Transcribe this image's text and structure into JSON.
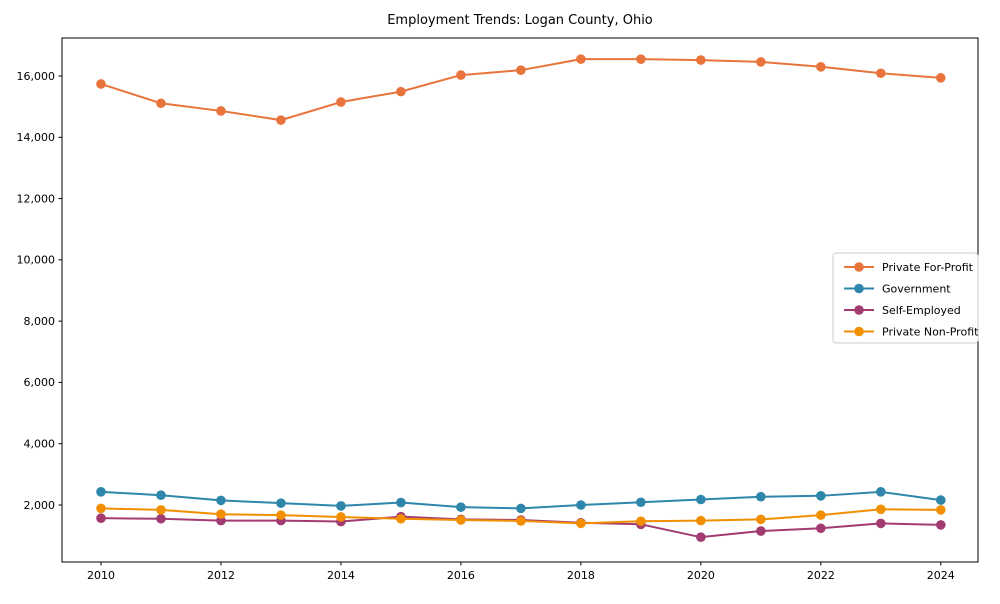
{
  "chart_data": {
    "type": "line",
    "title": "Employment Trends: Logan County, Ohio",
    "xlabel": "",
    "ylabel": "",
    "x": [
      2010,
      2011,
      2012,
      2013,
      2014,
      2015,
      2016,
      2017,
      2018,
      2019,
      2020,
      2021,
      2022,
      2023,
      2024
    ],
    "series": [
      {
        "name": "Private For-Profit",
        "color": "#E8743B",
        "values": [
          15740,
          15110,
          14860,
          14560,
          15150,
          15490,
          16030,
          16190,
          16550,
          16550,
          16520,
          16460,
          16300,
          16090,
          15940
        ]
      },
      {
        "name": "Government",
        "color": "#2E86AB",
        "values": [
          2430,
          2320,
          2150,
          2060,
          1970,
          2080,
          1930,
          1890,
          2000,
          2090,
          2180,
          2270,
          2300,
          2430,
          2160
        ]
      },
      {
        "name": "Self-Employed",
        "color": "#A23B72",
        "values": [
          1570,
          1550,
          1490,
          1490,
          1460,
          1620,
          1530,
          1510,
          1420,
          1370,
          950,
          1150,
          1240,
          1400,
          1350
        ]
      },
      {
        "name": "Private Non-Profit",
        "color": "#F18F01",
        "values": [
          1890,
          1840,
          1700,
          1670,
          1610,
          1550,
          1510,
          1480,
          1400,
          1470,
          1490,
          1530,
          1670,
          1860,
          1840
        ]
      }
    ],
    "xlim": [
      2009.35,
      2024.62
    ],
    "ylim": [
      140,
      17240
    ],
    "xticks": [
      2010,
      2012,
      2014,
      2016,
      2018,
      2020,
      2022,
      2024
    ],
    "xtick_labels": [
      "2010",
      "2012",
      "2014",
      "2016",
      "2018",
      "2020",
      "2022",
      "2024"
    ],
    "yticks": [
      2000,
      4000,
      6000,
      8000,
      10000,
      12000,
      14000,
      16000
    ],
    "ytick_labels": [
      "2,000",
      "4,000",
      "6,000",
      "8,000",
      "10,000",
      "12,000",
      "14,000",
      "16,000"
    ],
    "grid": false,
    "legend_position": "center right",
    "legend_entries": [
      "Private For-Profit",
      "Government",
      "Self-Employed",
      "Private Non-Profit"
    ],
    "background_color": "#ffffff",
    "spine_color": "#000000",
    "legend_border_color": "#cccccc"
  }
}
